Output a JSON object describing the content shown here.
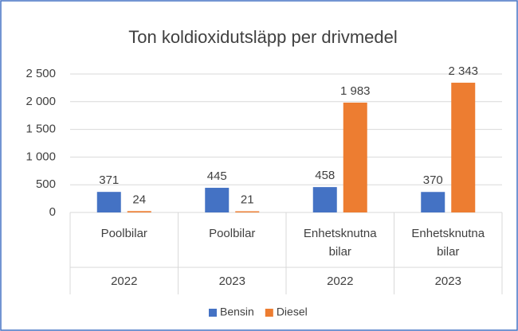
{
  "chart_data": {
    "type": "bar",
    "title": "Ton koldioxidutsläpp per drivmedel",
    "categories": [
      {
        "label": "Poolbilar",
        "year": "2022"
      },
      {
        "label": "Poolbilar",
        "year": "2023"
      },
      {
        "label": "Enhetsknutna bilar",
        "year": "2022"
      },
      {
        "label": "Enhetsknutna bilar",
        "year": "2023"
      }
    ],
    "series": [
      {
        "name": "Bensin",
        "color": "#4472c4",
        "values": [
          371,
          445,
          458,
          370
        ],
        "value_labels": [
          "371",
          "445",
          "458",
          "370"
        ]
      },
      {
        "name": "Diesel",
        "color": "#ed7d31",
        "values": [
          24,
          21,
          1983,
          2343
        ],
        "value_labels": [
          "24",
          "21",
          "1 983",
          "2 343"
        ]
      }
    ],
    "ylim": [
      0,
      2500
    ],
    "yticks": [
      0,
      500,
      {
        "value": 1000,
        "label": "1 000"
      },
      {
        "value": 1500,
        "label": "1 500"
      },
      {
        "value": 2000,
        "label": "2 000"
      },
      {
        "value": 2500,
        "label": "2 500"
      }
    ],
    "grid": true,
    "legend": "bottom"
  }
}
